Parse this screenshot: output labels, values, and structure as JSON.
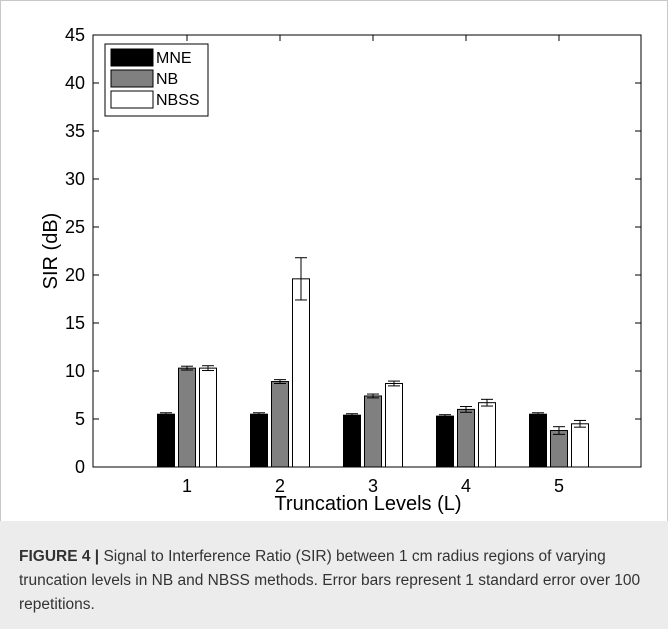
{
  "chart_data": {
    "type": "bar",
    "categories": [
      "1",
      "2",
      "3",
      "4",
      "5"
    ],
    "xlabel": "Truncation Levels (L)",
    "ylabel": "SIR (dB)",
    "ylim": [
      0,
      45
    ],
    "yticks": [
      0,
      5,
      10,
      15,
      20,
      25,
      30,
      35,
      40,
      45
    ],
    "grid": false,
    "legend_position": "top-left",
    "series": [
      {
        "name": "MNE",
        "color": "#000000",
        "values": [
          5.5,
          5.5,
          5.4,
          5.3,
          5.5
        ],
        "errors": [
          0.15,
          0.15,
          0.15,
          0.15,
          0.15
        ]
      },
      {
        "name": "NB",
        "color": "#808080",
        "values": [
          10.3,
          8.9,
          7.4,
          6.0,
          3.8
        ],
        "errors": [
          0.2,
          0.2,
          0.2,
          0.3,
          0.4
        ]
      },
      {
        "name": "NBSS",
        "color": "#ffffff",
        "values": [
          10.3,
          19.6,
          8.7,
          6.7,
          4.5
        ],
        "errors": [
          0.25,
          2.2,
          0.25,
          0.35,
          0.35
        ]
      }
    ]
  },
  "caption": {
    "label": "FIGURE 4 |",
    "text": " Signal to Interference Ratio (SIR) between 1 cm radius regions of varying truncation levels in NB and NBSS methods. Error bars represent 1 standard error over 100 repetitions."
  }
}
